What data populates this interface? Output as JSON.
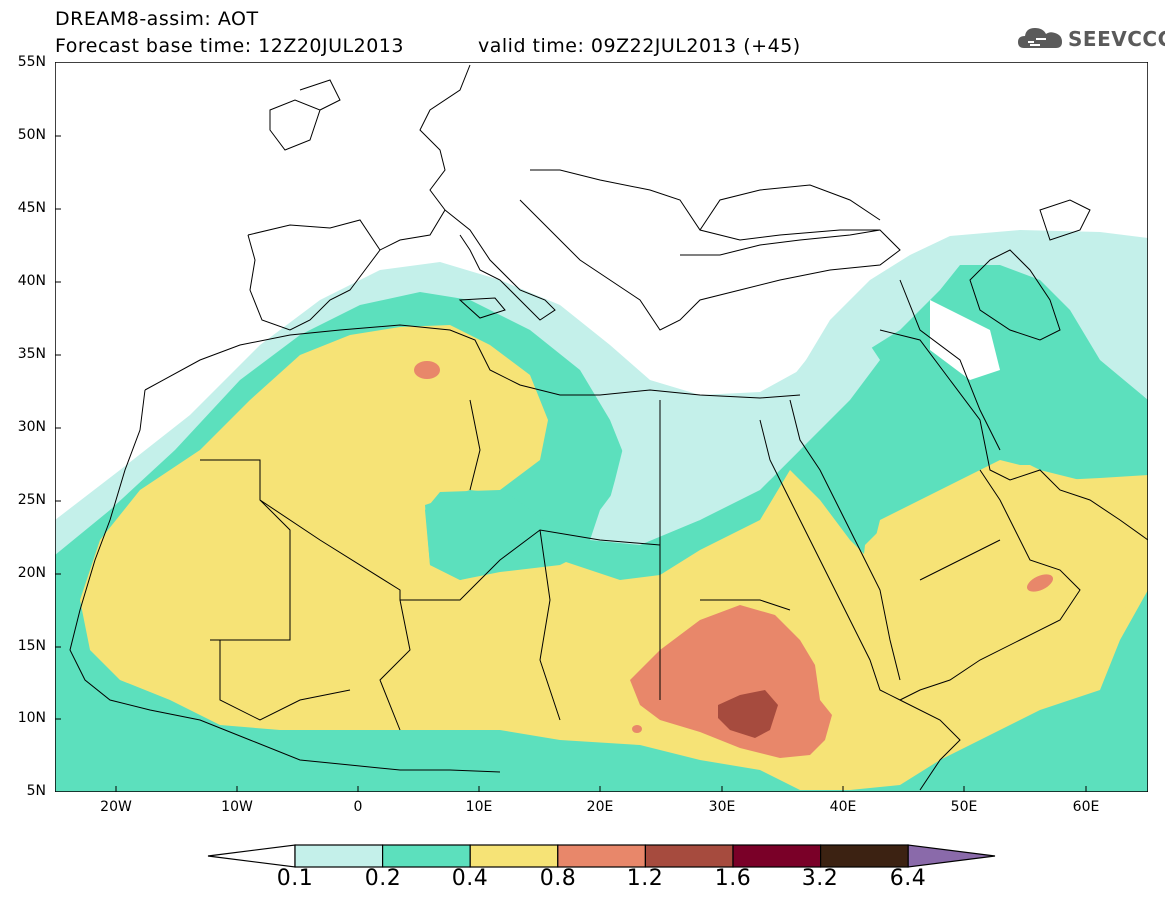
{
  "header": {
    "title_line1": "DREAM8-assim: AOT",
    "title_line2": "Forecast base time: 12Z20JUL2013",
    "valid_time": "valid time: 09Z22JUL2013 (+45)",
    "logo_text": "SEEVCCC"
  },
  "map": {
    "lat_labels": [
      "55N",
      "50N",
      "45N",
      "40N",
      "35N",
      "30N",
      "25N",
      "20N",
      "15N",
      "10N",
      "5N"
    ],
    "lon_labels": [
      "20W",
      "10W",
      "0",
      "10E",
      "20E",
      "30E",
      "40E",
      "50E",
      "60E"
    ]
  },
  "colorbar": {
    "labels": [
      "0.1",
      "0.2",
      "0.4",
      "0.8",
      "1.2",
      "1.6",
      "3.2",
      "6.4"
    ],
    "colors": [
      "#ffffff",
      "#c4f0ea",
      "#5ce0bd",
      "#f6e376",
      "#e8876a",
      "#a64b3e",
      "#7a0028",
      "#3c2212",
      "#8a6aaa"
    ]
  }
}
